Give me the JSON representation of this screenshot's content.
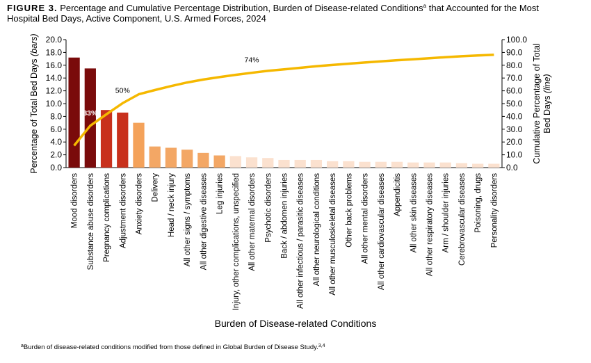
{
  "chart_data": {
    "type": "pareto",
    "title_label": "FIGURE 3.",
    "title": "Percentage and Cumulative Percentage Distribution, Burden of Disease-related Conditions",
    "title_sup": "a",
    "title_rest": "that Accounted for the Most",
    "title_line2": "Hospital Bed Days, Active Component, U.S. Armed Forces, 2024",
    "xlabel": "Burden of Disease-related Conditions",
    "ylabel": "Percentage of Total Bed Days",
    "ylabel_note": "(bars)",
    "y2label": [
      "Cumulative Percentage of Total",
      "Bed Days"
    ],
    "y2label_note": "(line)",
    "footnote_sup": "a",
    "footnote": "Burden of disease-related conditions modified from those defined in Global Burden of Disease Study.",
    "footnote_ref": "3,4",
    "categories": [
      "Mood disorders",
      "Substance abuse disorders",
      "Pregnancy complications",
      "Adjustment disorders",
      "Anxiety disorders",
      "Delivery",
      "Head / neck injury",
      "All other signs / symptoms",
      "All other digestive diseases",
      "Leg injuries",
      "Injury, other complications, unspecified",
      "All other maternal disorders",
      "Psychotic disorders",
      "Back / abdomen injuries",
      "All other infectious / parasitic diseases",
      "All other neurological conditions",
      "All other musculoskeletal diseases",
      "Other back problems",
      "All other mental disorders",
      "All other cardiovascular diseases",
      "Appendicitis",
      "All other skin diseases",
      "All other respiratory diseases",
      "Arm / shoulder injuries",
      "Cerebrovascular diseases",
      "Poisoning, drugs",
      "Personality disorders"
    ],
    "series": [
      {
        "name": "Percentage of Total Bed Days",
        "values": [
          17.2,
          15.5,
          9.0,
          8.6,
          7.0,
          3.3,
          3.1,
          2.8,
          2.3,
          1.9,
          1.8,
          1.6,
          1.5,
          1.2,
          1.2,
          1.2,
          1.0,
          1.0,
          0.9,
          0.9,
          0.9,
          0.8,
          0.8,
          0.8,
          0.7,
          0.6,
          0.6
        ],
        "colors": [
          "#7a0b0b",
          "#7a0b0b",
          "#c8301c",
          "#c8301c",
          "#f4a25a",
          "#f3a765",
          "#f3a765",
          "#f3a765",
          "#f3a765",
          "#f3a765",
          "#fbe1cf",
          "#fbe1cf",
          "#fbe1cf",
          "#fbe1cf",
          "#fbe1cf",
          "#fbe1cf",
          "#fbe1cf",
          "#fbe1cf",
          "#fbe1cf",
          "#fbe1cf",
          "#fbe1cf",
          "#fbe1cf",
          "#fbe1cf",
          "#fbe1cf",
          "#fbe1cf",
          "#fbe1cf",
          "#fbe1cf"
        ]
      },
      {
        "name": "Cumulative Percentage of Total Bed Days",
        "axis": "y2",
        "color": "#f5b800",
        "values": [
          17.2,
          32.7,
          41.7,
          50.3,
          57.3,
          60.6,
          63.7,
          66.5,
          68.8,
          70.7,
          72.5,
          74.1,
          75.6,
          76.8,
          78.0,
          79.2,
          80.2,
          81.2,
          82.1,
          83.0,
          83.9,
          84.7,
          85.5,
          86.3,
          87.0,
          87.6,
          88.2
        ],
        "value_labels": [
          null,
          "33%",
          null,
          "50%",
          null,
          null,
          null,
          null,
          null,
          null,
          null,
          "74%",
          null,
          null,
          null,
          null,
          null,
          null,
          null,
          null,
          null,
          null,
          null,
          null,
          null,
          null,
          null
        ]
      }
    ],
    "ylim": [
      0,
      20
    ],
    "yticks": [
      {
        "value": 0,
        "label": "0.0"
      },
      {
        "value": 2,
        "label": "2.0"
      },
      {
        "value": 4,
        "label": "4.0"
      },
      {
        "value": 6,
        "label": "6.0"
      },
      {
        "value": 8,
        "label": "8.0"
      },
      {
        "value": 10,
        "label": "10.0"
      },
      {
        "value": 12,
        "label": "12.0"
      },
      {
        "value": 14,
        "label": "14.0"
      },
      {
        "value": 16,
        "label": "16.0"
      },
      {
        "value": 18,
        "label": "18.0"
      },
      {
        "value": 20,
        "label": "20.0"
      }
    ],
    "y2lim": [
      0,
      100
    ],
    "y2ticks": [
      {
        "value": 0,
        "label": "0.0"
      },
      {
        "value": 10,
        "label": "10.0"
      },
      {
        "value": 20,
        "label": "20.0"
      },
      {
        "value": 30,
        "label": "30.0"
      },
      {
        "value": 40,
        "label": "40.0"
      },
      {
        "value": 50,
        "label": "50.0"
      },
      {
        "value": 60,
        "label": "60.0"
      },
      {
        "value": 70,
        "label": "70.0"
      },
      {
        "value": 80,
        "label": "80.0"
      },
      {
        "value": 90,
        "label": "90.0"
      },
      {
        "value": 100,
        "label": "100.0"
      }
    ]
  }
}
